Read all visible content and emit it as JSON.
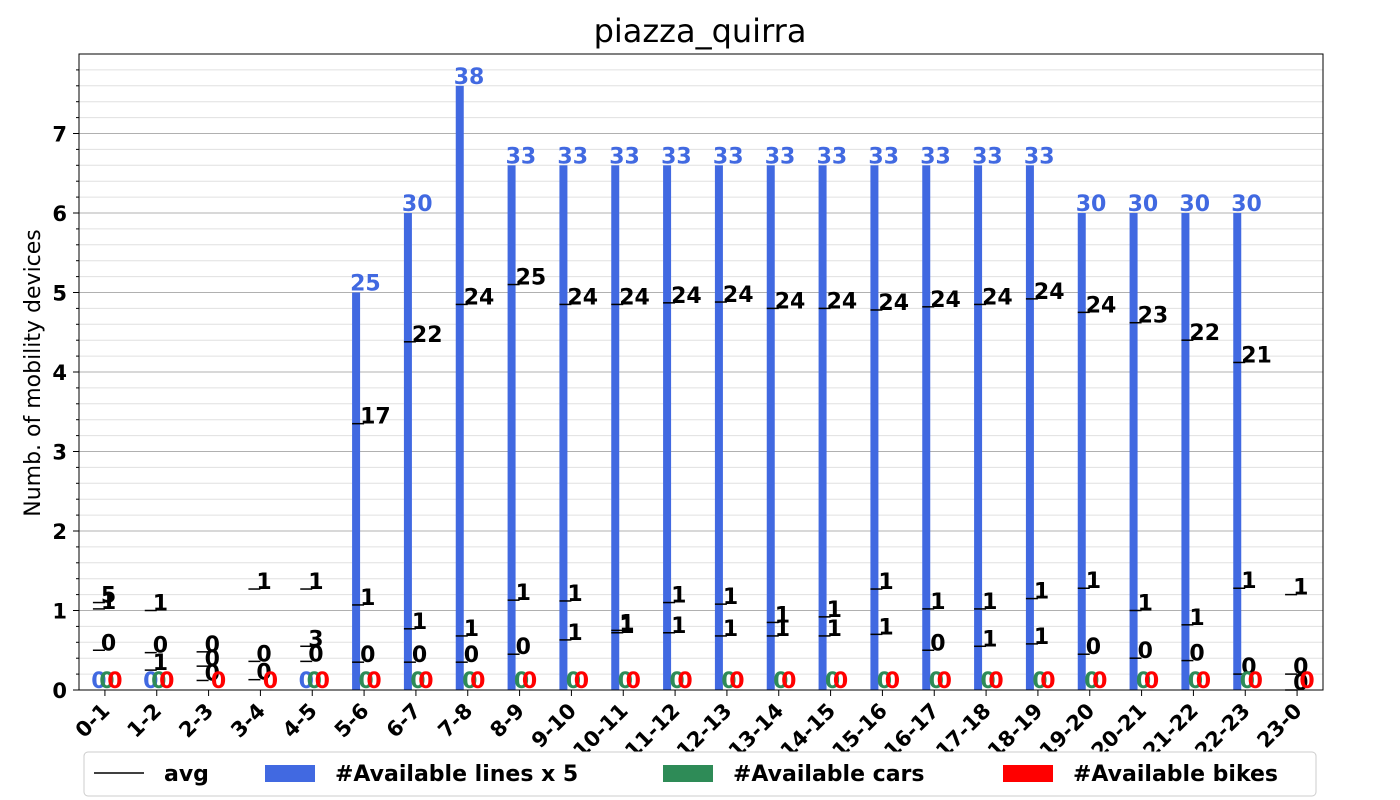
{
  "chart_data": {
    "type": "bar",
    "title": "piazza_quirra",
    "xlabel": "",
    "ylabel": "Numb. of mobility devices",
    "ylim": [
      0,
      8
    ],
    "yticks": [
      0,
      1,
      2,
      3,
      4,
      5,
      6,
      7
    ],
    "grid": true,
    "legend_position": "bottom",
    "categories": [
      "0-1",
      "1-2",
      "2-3",
      "3-4",
      "4-5",
      "5-6",
      "6-7",
      "7-8",
      "8-9",
      "9-10",
      "10-11",
      "11-12",
      "12-13",
      "13-14",
      "14-15",
      "15-16",
      "16-17",
      "17-18",
      "18-19",
      "19-20",
      "20-21",
      "21-22",
      "22-23",
      "23-0"
    ],
    "series": [
      {
        "name": "#Available lines x 5",
        "color": "#4169e1",
        "values": [
          0,
          0,
          0,
          0,
          0,
          5,
          6,
          7.6,
          6.6,
          6.6,
          6.6,
          6.6,
          6.6,
          6.6,
          6.6,
          6.6,
          6.6,
          6.6,
          6.6,
          6,
          6,
          6,
          6,
          0
        ],
        "labels": [
          "0",
          "0",
          "",
          "",
          "0",
          "25",
          "30",
          "38",
          "33",
          "33",
          "33",
          "33",
          "33",
          "33",
          "33",
          "33",
          "33",
          "33",
          "33",
          "30",
          "30",
          "30",
          "30",
          ""
        ]
      },
      {
        "name": "#Available cars",
        "color": "#2e8b57",
        "values": [
          0,
          0,
          0,
          0,
          0,
          0,
          0,
          0,
          0,
          0,
          0,
          0,
          0,
          0,
          0,
          0,
          0,
          0,
          0,
          0,
          0,
          0,
          0,
          0
        ],
        "labels": [
          "0",
          "0",
          "",
          "",
          "0",
          "0",
          "0",
          "0",
          "0",
          "0",
          "0",
          "0",
          "0",
          "0",
          "0",
          "0",
          "0",
          "0",
          "0",
          "0",
          "0",
          "0",
          "0",
          ""
        ]
      },
      {
        "name": "#Available bikes",
        "color": "#ff0000",
        "values": [
          0,
          0,
          0,
          0,
          0,
          0,
          0,
          0,
          0,
          0,
          0,
          0,
          0,
          0,
          0,
          0,
          0,
          0,
          0,
          0,
          0,
          0,
          0,
          0
        ],
        "labels": [
          "0",
          "0",
          "0",
          "0",
          "0",
          "0",
          "0",
          "0",
          "0",
          "0",
          "0",
          "0",
          "0",
          "0",
          "0",
          "0",
          "0",
          "0",
          "0",
          "0",
          "0",
          "0",
          "0",
          "0"
        ]
      }
    ],
    "avg_markers": [
      {
        "category": "0-1",
        "items": [
          {
            "y": 1.1,
            "label": "5"
          },
          {
            "y": 1.02,
            "label": "1"
          },
          {
            "y": 0.5,
            "label": "0"
          }
        ]
      },
      {
        "category": "1-2",
        "items": [
          {
            "y": 1.0,
            "label": "1"
          },
          {
            "y": 0.47,
            "label": "0"
          },
          {
            "y": 0.25,
            "label": "1"
          }
        ]
      },
      {
        "category": "2-3",
        "items": [
          {
            "y": 0.48,
            "label": "0"
          },
          {
            "y": 0.3,
            "label": "0"
          },
          {
            "y": 0.12,
            "label": "0"
          }
        ]
      },
      {
        "category": "3-4",
        "items": [
          {
            "y": 1.27,
            "label": "1"
          },
          {
            "y": 0.36,
            "label": "0"
          },
          {
            "y": 0.13,
            "label": "0"
          }
        ]
      },
      {
        "category": "4-5",
        "items": [
          {
            "y": 1.27,
            "label": "1"
          },
          {
            "y": 0.55,
            "label": "3"
          },
          {
            "y": 0.36,
            "label": "0"
          }
        ]
      },
      {
        "category": "5-6",
        "items": [
          {
            "y": 3.35,
            "label": "17"
          },
          {
            "y": 1.07,
            "label": "1"
          },
          {
            "y": 0.35,
            "label": "0"
          }
        ]
      },
      {
        "category": "6-7",
        "items": [
          {
            "y": 4.38,
            "label": "22"
          },
          {
            "y": 0.77,
            "label": "1"
          },
          {
            "y": 0.35,
            "label": "0"
          }
        ]
      },
      {
        "category": "7-8",
        "items": [
          {
            "y": 4.85,
            "label": "24"
          },
          {
            "y": 0.68,
            "label": "1"
          },
          {
            "y": 0.35,
            "label": "0"
          }
        ]
      },
      {
        "category": "8-9",
        "items": [
          {
            "y": 5.1,
            "label": "25"
          },
          {
            "y": 1.13,
            "label": "1"
          },
          {
            "y": 0.45,
            "label": "0"
          }
        ]
      },
      {
        "category": "9-10",
        "items": [
          {
            "y": 4.85,
            "label": "24"
          },
          {
            "y": 1.12,
            "label": "1"
          },
          {
            "y": 0.63,
            "label": "1"
          }
        ]
      },
      {
        "category": "10-11",
        "items": [
          {
            "y": 4.85,
            "label": "24"
          },
          {
            "y": 0.75,
            "label": "1"
          },
          {
            "y": 0.72,
            "label": "1"
          }
        ]
      },
      {
        "category": "11-12",
        "items": [
          {
            "y": 4.87,
            "label": "24"
          },
          {
            "y": 1.1,
            "label": "1"
          },
          {
            "y": 0.72,
            "label": "1"
          }
        ]
      },
      {
        "category": "12-13",
        "items": [
          {
            "y": 4.88,
            "label": "24"
          },
          {
            "y": 1.08,
            "label": "1"
          },
          {
            "y": 0.68,
            "label": "1"
          }
        ]
      },
      {
        "category": "13-14",
        "items": [
          {
            "y": 4.8,
            "label": "24"
          },
          {
            "y": 0.85,
            "label": "1"
          },
          {
            "y": 0.68,
            "label": "1"
          }
        ]
      },
      {
        "category": "14-15",
        "items": [
          {
            "y": 4.8,
            "label": "24"
          },
          {
            "y": 0.92,
            "label": "1"
          },
          {
            "y": 0.68,
            "label": "1"
          }
        ]
      },
      {
        "category": "15-16",
        "items": [
          {
            "y": 4.78,
            "label": "24"
          },
          {
            "y": 1.27,
            "label": "1"
          },
          {
            "y": 0.7,
            "label": "1"
          }
        ]
      },
      {
        "category": "16-17",
        "items": [
          {
            "y": 4.82,
            "label": "24"
          },
          {
            "y": 1.02,
            "label": "1"
          },
          {
            "y": 0.5,
            "label": "0"
          }
        ]
      },
      {
        "category": "17-18",
        "items": [
          {
            "y": 4.85,
            "label": "24"
          },
          {
            "y": 1.02,
            "label": "1"
          },
          {
            "y": 0.55,
            "label": "1"
          }
        ]
      },
      {
        "category": "18-19",
        "items": [
          {
            "y": 4.92,
            "label": "24"
          },
          {
            "y": 1.15,
            "label": "1"
          },
          {
            "y": 0.58,
            "label": "1"
          }
        ]
      },
      {
        "category": "19-20",
        "items": [
          {
            "y": 4.75,
            "label": "24"
          },
          {
            "y": 1.28,
            "label": "1"
          },
          {
            "y": 0.45,
            "label": "0"
          }
        ]
      },
      {
        "category": "20-21",
        "items": [
          {
            "y": 4.62,
            "label": "23"
          },
          {
            "y": 1.0,
            "label": "1"
          },
          {
            "y": 0.4,
            "label": "0"
          }
        ]
      },
      {
        "category": "21-22",
        "items": [
          {
            "y": 4.4,
            "label": "22"
          },
          {
            "y": 0.82,
            "label": "1"
          },
          {
            "y": 0.37,
            "label": "0"
          }
        ]
      },
      {
        "category": "22-23",
        "items": [
          {
            "y": 4.12,
            "label": "21"
          },
          {
            "y": 1.28,
            "label": "1"
          },
          {
            "y": 0.2,
            "label": "0"
          }
        ]
      },
      {
        "category": "23-0",
        "items": [
          {
            "y": 1.2,
            "label": "1"
          },
          {
            "y": 0.2,
            "label": "0"
          },
          {
            "y": 0.0,
            "label": "0"
          }
        ]
      }
    ],
    "legend": [
      {
        "label": "avg",
        "kind": "line",
        "color": "#000000"
      },
      {
        "label": "#Available lines x 5",
        "kind": "patch",
        "color": "#4169e1"
      },
      {
        "label": "#Available cars",
        "kind": "patch",
        "color": "#2e8b57"
      },
      {
        "label": "#Available bikes",
        "kind": "patch",
        "color": "#ff0000"
      }
    ]
  }
}
